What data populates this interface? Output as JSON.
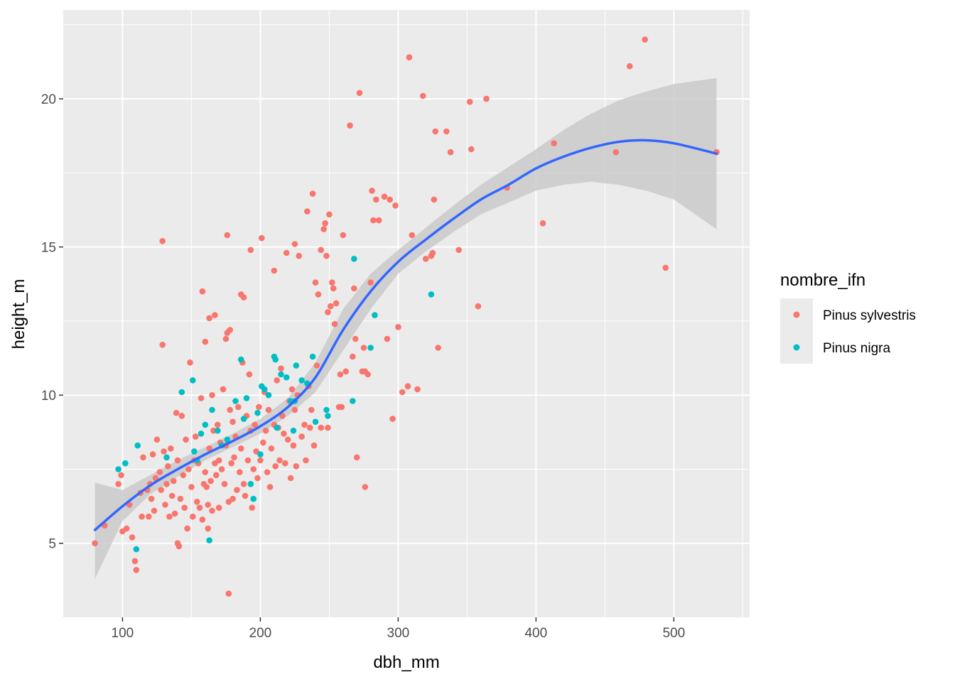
{
  "chart_data": {
    "type": "scatter",
    "title": "",
    "xlabel": "dbh_mm",
    "ylabel": "height_m",
    "xlim": [
      57,
      555
    ],
    "ylim": [
      2.5,
      23
    ],
    "x_ticks": [
      100,
      200,
      300,
      400,
      500
    ],
    "y_ticks": [
      5,
      10,
      15,
      20
    ],
    "x_tick_labels": [
      "100",
      "200",
      "300",
      "400",
      "500"
    ],
    "y_tick_labels": [
      "5",
      "10",
      "15",
      "20"
    ],
    "grid": true,
    "legend": {
      "title": "nombre_ifn",
      "placement": "right",
      "entries": [
        "Pinus sylvestris",
        "Pinus nigra"
      ]
    },
    "colors": {
      "panel": "#ebebeb",
      "grid": "#ffffff",
      "Pinus sylvestris": "#f8766d",
      "Pinus nigra": "#00bfc4",
      "smooth_line": "#3366ff",
      "ribbon": "#c8c8c8"
    },
    "series": [
      {
        "name": "Pinus sylvestris",
        "points": [
          [
            80,
            5.0
          ],
          [
            87,
            5.6
          ],
          [
            97,
            7.0
          ],
          [
            99,
            7.3
          ],
          [
            100,
            5.4
          ],
          [
            103,
            5.5
          ],
          [
            105,
            6.3
          ],
          [
            107,
            5.2
          ],
          [
            109,
            4.4
          ],
          [
            110,
            4.1
          ],
          [
            113,
            6.7
          ],
          [
            114,
            5.9
          ],
          [
            115,
            7.9
          ],
          [
            118,
            6.8
          ],
          [
            119,
            5.9
          ],
          [
            120,
            7.0
          ],
          [
            121,
            6.5
          ],
          [
            122,
            8.0
          ],
          [
            123,
            6.1
          ],
          [
            124,
            7.2
          ],
          [
            125,
            8.5
          ],
          [
            127,
            7.4
          ],
          [
            128,
            6.8
          ],
          [
            129,
            11.7
          ],
          [
            129,
            15.2
          ],
          [
            130,
            8.1
          ],
          [
            131,
            6.3
          ],
          [
            132,
            7.0
          ],
          [
            133,
            7.6
          ],
          [
            134,
            5.9
          ],
          [
            135,
            8.2
          ],
          [
            136,
            6.6
          ],
          [
            137,
            7.1
          ],
          [
            138,
            6.0
          ],
          [
            139,
            9.4
          ],
          [
            140,
            5.0
          ],
          [
            140,
            7.8
          ],
          [
            141,
            4.9
          ],
          [
            142,
            6.5
          ],
          [
            143,
            9.3
          ],
          [
            144,
            7.3
          ],
          [
            145,
            6.2
          ],
          [
            146,
            8.5
          ],
          [
            147,
            5.5
          ],
          [
            148,
            7.5
          ],
          [
            149,
            11.1
          ],
          [
            150,
            6.9
          ],
          [
            151,
            5.9
          ],
          [
            152,
            7.8
          ],
          [
            153,
            8.6
          ],
          [
            154,
            6.4
          ],
          [
            155,
            7.7
          ],
          [
            156,
            6.2
          ],
          [
            157,
            9.9
          ],
          [
            158,
            5.8
          ],
          [
            158,
            13.5
          ],
          [
            159,
            7.0
          ],
          [
            160,
            11.8
          ],
          [
            160,
            7.4
          ],
          [
            161,
            6.9
          ],
          [
            162,
            6.3
          ],
          [
            162,
            5.5
          ],
          [
            163,
            12.6
          ],
          [
            163,
            8.2
          ],
          [
            164,
            7.1
          ],
          [
            165,
            6.1
          ],
          [
            165,
            10.0
          ],
          [
            166,
            8.8
          ],
          [
            167,
            12.7
          ],
          [
            167,
            7.7
          ],
          [
            168,
            7.3
          ],
          [
            169,
            9.0
          ],
          [
            170,
            6.2
          ],
          [
            170,
            7.8
          ],
          [
            171,
            8.4
          ],
          [
            172,
            7.5
          ],
          [
            173,
            10.2
          ],
          [
            174,
            7.0
          ],
          [
            175,
            11.9
          ],
          [
            175,
            8.3
          ],
          [
            176,
            12.1
          ],
          [
            176,
            15.4
          ],
          [
            177,
            6.4
          ],
          [
            177,
            3.3
          ],
          [
            178,
            12.2
          ],
          [
            178,
            9.5
          ],
          [
            179,
            7.7
          ],
          [
            180,
            6.5
          ],
          [
            180,
            9.1
          ],
          [
            181,
            7.9
          ],
          [
            182,
            8.6
          ],
          [
            183,
            6.8
          ],
          [
            184,
            9.6
          ],
          [
            185,
            7.4
          ],
          [
            186,
            13.4
          ],
          [
            186,
            8.2
          ],
          [
            187,
            11.1
          ],
          [
            188,
            13.3
          ],
          [
            188,
            7.0
          ],
          [
            189,
            6.6
          ],
          [
            190,
            9.3
          ],
          [
            191,
            7.8
          ],
          [
            192,
            10.7
          ],
          [
            193,
            14.9
          ],
          [
            193,
            8.8
          ],
          [
            194,
            6.2
          ],
          [
            195,
            7.5
          ],
          [
            196,
            9.0
          ],
          [
            197,
            8.1
          ],
          [
            198,
            7.2
          ],
          [
            199,
            9.6
          ],
          [
            200,
            7.8
          ],
          [
            201,
            15.3
          ],
          [
            202,
            8.4
          ],
          [
            203,
            10.1
          ],
          [
            204,
            8.8
          ],
          [
            205,
            7.4
          ],
          [
            206,
            9.5
          ],
          [
            207,
            6.9
          ],
          [
            208,
            8.2
          ],
          [
            210,
            14.2
          ],
          [
            210,
            9.0
          ],
          [
            211,
            7.6
          ],
          [
            212,
            10.5
          ],
          [
            213,
            8.9
          ],
          [
            214,
            7.8
          ],
          [
            215,
            10.9
          ],
          [
            216,
            9.3
          ],
          [
            217,
            8.7
          ],
          [
            218,
            7.7
          ],
          [
            219,
            14.8
          ],
          [
            220,
            8.5
          ],
          [
            221,
            9.8
          ],
          [
            222,
            7.2
          ],
          [
            223,
            10.2
          ],
          [
            224,
            8.3
          ],
          [
            225,
            15.1
          ],
          [
            225,
            9.5
          ],
          [
            226,
            7.6
          ],
          [
            227,
            10.0
          ],
          [
            228,
            14.7
          ],
          [
            230,
            8.6
          ],
          [
            232,
            9.0
          ],
          [
            233,
            7.8
          ],
          [
            234,
            16.2
          ],
          [
            235,
            10.3
          ],
          [
            236,
            8.9
          ],
          [
            237,
            9.5
          ],
          [
            238,
            16.8
          ],
          [
            239,
            8.3
          ],
          [
            240,
            13.8
          ],
          [
            241,
            11.0
          ],
          [
            242,
            13.4
          ],
          [
            244,
            14.9
          ],
          [
            244,
            8.9
          ],
          [
            246,
            15.6
          ],
          [
            247,
            15.8
          ],
          [
            248,
            14.7
          ],
          [
            249,
            12.8
          ],
          [
            249,
            8.9
          ],
          [
            250,
            16.1
          ],
          [
            251,
            13.0
          ],
          [
            252,
            13.8
          ],
          [
            253,
            13.6
          ],
          [
            254,
            12.4
          ],
          [
            255,
            13.1
          ],
          [
            257,
            9.6
          ],
          [
            258,
            10.7
          ],
          [
            259,
            9.6
          ],
          [
            260,
            15.4
          ],
          [
            262,
            10.8
          ],
          [
            265,
            19.1
          ],
          [
            267,
            11.3
          ],
          [
            268,
            13.6
          ],
          [
            269,
            11.9
          ],
          [
            270,
            7.9
          ],
          [
            272,
            20.2
          ],
          [
            274,
            10.8
          ],
          [
            275,
            11.6
          ],
          [
            276,
            6.9
          ],
          [
            276,
            10.8
          ],
          [
            278,
            10.7
          ],
          [
            280,
            13.8
          ],
          [
            281,
            16.9
          ],
          [
            282,
            15.9
          ],
          [
            284,
            16.6
          ],
          [
            286,
            15.9
          ],
          [
            290,
            16.7
          ],
          [
            292,
            11.9
          ],
          [
            294,
            16.6
          ],
          [
            296,
            9.2
          ],
          [
            298,
            16.4
          ],
          [
            300,
            12.3
          ],
          [
            303,
            10.1
          ],
          [
            307,
            10.3
          ],
          [
            308,
            21.4
          ],
          [
            310,
            15.4
          ],
          [
            314,
            10.2
          ],
          [
            318,
            20.1
          ],
          [
            320,
            14.6
          ],
          [
            324,
            14.7
          ],
          [
            325,
            14.8
          ],
          [
            326,
            16.6
          ],
          [
            327,
            18.9
          ],
          [
            329,
            11.6
          ],
          [
            335,
            18.9
          ],
          [
            338,
            18.2
          ],
          [
            344,
            14.9
          ],
          [
            352,
            19.9
          ],
          [
            353,
            18.3
          ],
          [
            358,
            13.0
          ],
          [
            364,
            20.0
          ],
          [
            379,
            17.0
          ],
          [
            405,
            15.8
          ],
          [
            413,
            18.5
          ],
          [
            458,
            18.2
          ],
          [
            468,
            21.1
          ],
          [
            479,
            22.0
          ],
          [
            494,
            14.3
          ],
          [
            531,
            18.2
          ]
        ]
      },
      {
        "name": "Pinus nigra",
        "points": [
          [
            97,
            7.5
          ],
          [
            102,
            7.7
          ],
          [
            110,
            4.8
          ],
          [
            111,
            8.3
          ],
          [
            132,
            7.9
          ],
          [
            143,
            10.1
          ],
          [
            151,
            10.5
          ],
          [
            152,
            8.1
          ],
          [
            154,
            7.8
          ],
          [
            157,
            8.7
          ],
          [
            160,
            9.0
          ],
          [
            163,
            5.1
          ],
          [
            165,
            9.5
          ],
          [
            169,
            8.8
          ],
          [
            172,
            8.3
          ],
          [
            176,
            8.5
          ],
          [
            182,
            9.8
          ],
          [
            186,
            11.2
          ],
          [
            188,
            9.2
          ],
          [
            190,
            9.9
          ],
          [
            193,
            7.0
          ],
          [
            195,
            6.5
          ],
          [
            198,
            9.4
          ],
          [
            200,
            8.0
          ],
          [
            201,
            10.3
          ],
          [
            203,
            10.2
          ],
          [
            206,
            10.0
          ],
          [
            210,
            11.3
          ],
          [
            211,
            11.2
          ],
          [
            212,
            8.9
          ],
          [
            215,
            10.7
          ],
          [
            219,
            10.6
          ],
          [
            222,
            9.8
          ],
          [
            224,
            8.8
          ],
          [
            225,
            9.8
          ],
          [
            226,
            11.0
          ],
          [
            230,
            10.5
          ],
          [
            234,
            10.4
          ],
          [
            238,
            11.3
          ],
          [
            240,
            9.1
          ],
          [
            248,
            9.5
          ],
          [
            249,
            9.3
          ],
          [
            267,
            9.8
          ],
          [
            268,
            14.6
          ],
          [
            280,
            11.6
          ],
          [
            283,
            12.7
          ],
          [
            324,
            13.4
          ]
        ]
      }
    ],
    "smooth": {
      "name": "loess",
      "x": [
        80,
        100,
        120,
        140,
        160,
        180,
        200,
        220,
        240,
        260,
        280,
        300,
        320,
        340,
        360,
        380,
        400,
        420,
        440,
        460,
        480,
        500,
        531
      ],
      "y": [
        5.45,
        6.25,
        6.95,
        7.5,
        8.0,
        8.45,
        8.95,
        9.6,
        10.6,
        12.2,
        13.5,
        14.5,
        15.25,
        15.95,
        16.6,
        17.1,
        17.65,
        18.05,
        18.35,
        18.55,
        18.6,
        18.5,
        18.15
      ],
      "lower": [
        3.8,
        5.75,
        6.65,
        7.25,
        7.8,
        8.25,
        8.7,
        9.3,
        10.1,
        11.5,
        12.9,
        14.1,
        14.85,
        15.5,
        16.1,
        16.5,
        16.9,
        17.1,
        17.2,
        17.1,
        16.9,
        16.6,
        15.6
      ],
      "upper": [
        7.05,
        6.8,
        7.3,
        7.8,
        8.25,
        8.7,
        9.2,
        9.9,
        11.1,
        12.9,
        14.1,
        14.9,
        15.65,
        16.4,
        17.1,
        17.7,
        18.3,
        18.95,
        19.5,
        19.95,
        20.25,
        20.5,
        20.7
      ]
    }
  }
}
